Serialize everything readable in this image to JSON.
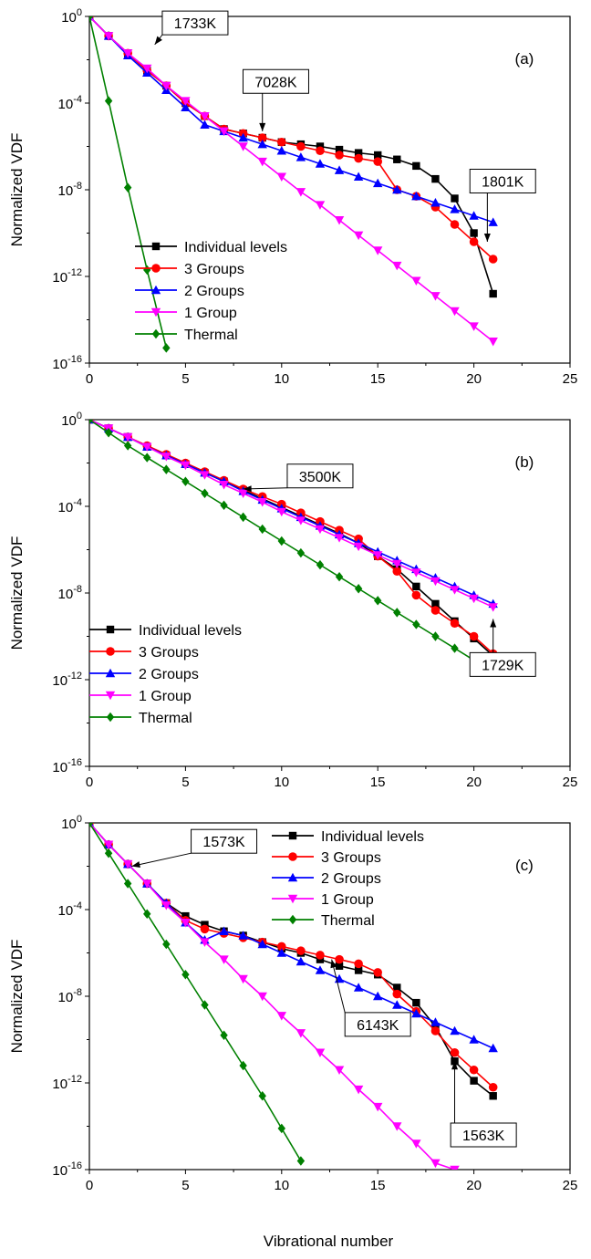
{
  "figure": {
    "xlabel": "Vibrational number"
  },
  "chart_data": [
    {
      "type": "line",
      "panel_label": "(a)",
      "ylabel": "Normalized VDF",
      "xlim": [
        0,
        25
      ],
      "ylim_exp": [
        -16,
        0
      ],
      "y_scale": "log",
      "x_ticks": [
        0,
        5,
        10,
        15,
        20,
        25
      ],
      "y_ticks_exp": [
        0,
        -4,
        -8,
        -12,
        -16
      ],
      "legend_position": "bottom-left",
      "series": [
        {
          "name": "Individual levels",
          "color": "#000000",
          "marker": "square",
          "x": [
            0,
            1,
            2,
            3,
            4,
            5,
            6,
            7,
            8,
            9,
            10,
            11,
            12,
            13,
            14,
            15,
            16,
            17,
            18,
            19,
            20,
            21
          ],
          "log10_y": [
            0,
            -0.9,
            -1.7,
            -2.5,
            -3.2,
            -4.0,
            -4.6,
            -5.2,
            -5.4,
            -5.6,
            -5.8,
            -5.9,
            -6.0,
            -6.15,
            -6.3,
            -6.4,
            -6.6,
            -6.9,
            -7.5,
            -8.4,
            -10.0,
            -12.8
          ]
        },
        {
          "name": "3 Groups",
          "color": "#ff0000",
          "marker": "circle",
          "x": [
            0,
            1,
            2,
            3,
            4,
            5,
            6,
            7,
            8,
            9,
            10,
            11,
            12,
            13,
            14,
            15,
            16,
            17,
            18,
            19,
            20,
            21
          ],
          "log10_y": [
            0,
            -0.9,
            -1.7,
            -2.5,
            -3.2,
            -4.0,
            -4.6,
            -5.2,
            -5.4,
            -5.6,
            -5.8,
            -6.0,
            -6.2,
            -6.4,
            -6.55,
            -6.7,
            -8.0,
            -8.3,
            -8.8,
            -9.6,
            -10.4,
            -11.2
          ]
        },
        {
          "name": "2 Groups",
          "color": "#0000ff",
          "marker": "triangle-up",
          "x": [
            0,
            1,
            2,
            3,
            4,
            5,
            6,
            7,
            8,
            9,
            10,
            11,
            12,
            13,
            14,
            15,
            16,
            17,
            18,
            19,
            20,
            21
          ],
          "log10_y": [
            0,
            -0.9,
            -1.8,
            -2.6,
            -3.4,
            -4.2,
            -5.0,
            -5.3,
            -5.6,
            -5.9,
            -6.2,
            -6.5,
            -6.8,
            -7.1,
            -7.4,
            -7.7,
            -8.0,
            -8.3,
            -8.6,
            -8.9,
            -9.2,
            -9.5
          ]
        },
        {
          "name": "1 Group",
          "color": "#ff00ff",
          "marker": "triangle-down",
          "x": [
            0,
            1,
            2,
            3,
            4,
            5,
            6,
            7,
            8,
            9,
            10,
            11,
            12,
            13,
            14,
            15,
            16,
            17,
            18,
            19,
            20,
            21
          ],
          "log10_y": [
            0,
            -0.9,
            -1.7,
            -2.4,
            -3.2,
            -3.9,
            -4.6,
            -5.3,
            -6.0,
            -6.7,
            -7.4,
            -8.1,
            -8.7,
            -9.4,
            -10.1,
            -10.8,
            -11.5,
            -12.2,
            -12.9,
            -13.6,
            -14.3,
            -15.0
          ]
        },
        {
          "name": "Thermal",
          "color": "#008000",
          "marker": "diamond",
          "x": [
            0,
            1,
            2,
            3,
            4
          ],
          "log10_y": [
            0,
            -3.9,
            -7.9,
            -11.7,
            -15.3
          ]
        }
      ],
      "annotations": [
        {
          "text": "1733K",
          "box_x": 5.5,
          "box_y_exp": -0.3,
          "arrow_x": 3.4,
          "arrow_y_exp": -1.3
        },
        {
          "text": "7028K",
          "box_x": 9.7,
          "box_y_exp": -3.0,
          "arrow_x": 9.0,
          "arrow_y_exp": -5.3
        },
        {
          "text": "1801K",
          "box_x": 21.5,
          "box_y_exp": -7.6,
          "arrow_x": 20.7,
          "arrow_y_exp": -10.4
        }
      ]
    },
    {
      "type": "line",
      "panel_label": "(b)",
      "ylabel": "Normalized VDF",
      "xlim": [
        0,
        25
      ],
      "ylim_exp": [
        -16,
        0
      ],
      "y_scale": "log",
      "x_ticks": [
        0,
        5,
        10,
        15,
        20,
        25
      ],
      "y_ticks_exp": [
        0,
        -4,
        -8,
        -12,
        -16
      ],
      "legend_position": "middle-left",
      "series": [
        {
          "name": "Individual levels",
          "color": "#000000",
          "marker": "square",
          "x": [
            0,
            1,
            2,
            3,
            4,
            5,
            6,
            7,
            8,
            9,
            10,
            11,
            12,
            13,
            14,
            15,
            16,
            17,
            18,
            19,
            20,
            21
          ],
          "log10_y": [
            0,
            -0.4,
            -0.8,
            -1.25,
            -1.65,
            -2.05,
            -2.45,
            -2.85,
            -3.25,
            -3.65,
            -4.05,
            -4.45,
            -4.85,
            -5.25,
            -5.7,
            -6.3,
            -6.9,
            -7.7,
            -8.5,
            -9.3,
            -10.1,
            -10.9
          ]
        },
        {
          "name": "3 Groups",
          "color": "#ff0000",
          "marker": "circle",
          "x": [
            0,
            1,
            2,
            3,
            4,
            5,
            6,
            7,
            8,
            9,
            10,
            11,
            12,
            13,
            14,
            15,
            16,
            17,
            18,
            19,
            20,
            21
          ],
          "log10_y": [
            0,
            -0.4,
            -0.8,
            -1.2,
            -1.6,
            -2.0,
            -2.4,
            -2.8,
            -3.2,
            -3.55,
            -3.9,
            -4.3,
            -4.7,
            -5.1,
            -5.5,
            -6.3,
            -7.0,
            -8.1,
            -8.8,
            -9.4,
            -10.0,
            -10.8
          ]
        },
        {
          "name": "2 Groups",
          "color": "#0000ff",
          "marker": "triangle-up",
          "x": [
            0,
            1,
            2,
            3,
            4,
            5,
            6,
            7,
            8,
            9,
            10,
            11,
            12,
            13,
            14,
            15,
            16,
            17,
            18,
            19,
            20,
            21
          ],
          "log10_y": [
            0,
            -0.4,
            -0.8,
            -1.25,
            -1.65,
            -2.05,
            -2.45,
            -2.85,
            -3.3,
            -3.7,
            -4.1,
            -4.5,
            -4.9,
            -5.3,
            -5.7,
            -6.1,
            -6.5,
            -6.9,
            -7.3,
            -7.7,
            -8.1,
            -8.5
          ]
        },
        {
          "name": "1 Group",
          "color": "#ff00ff",
          "marker": "triangle-down",
          "x": [
            0,
            1,
            2,
            3,
            4,
            5,
            6,
            7,
            8,
            9,
            10,
            11,
            12,
            13,
            14,
            15,
            16,
            17,
            18,
            19,
            20,
            21
          ],
          "log10_y": [
            0,
            -0.4,
            -0.8,
            -1.25,
            -1.7,
            -2.1,
            -2.55,
            -3.0,
            -3.4,
            -3.8,
            -4.25,
            -4.65,
            -5.05,
            -5.45,
            -5.85,
            -6.25,
            -6.65,
            -7.05,
            -7.45,
            -7.85,
            -8.25,
            -8.65
          ]
        },
        {
          "name": "Thermal",
          "color": "#008000",
          "marker": "diamond",
          "x": [
            0,
            1,
            2,
            3,
            4,
            5,
            6,
            7,
            8,
            9,
            10,
            11,
            12,
            13,
            14,
            15,
            16,
            17,
            18,
            19,
            20,
            21
          ],
          "log10_y": [
            0,
            -0.6,
            -1.2,
            -1.75,
            -2.3,
            -2.85,
            -3.4,
            -3.95,
            -4.5,
            -5.05,
            -5.6,
            -6.15,
            -6.7,
            -7.25,
            -7.8,
            -8.35,
            -8.9,
            -9.45,
            -10.0,
            -10.55,
            -11.1,
            -11.6
          ]
        }
      ],
      "annotations": [
        {
          "text": "3500K",
          "box_x": 12.0,
          "box_y_exp": -2.6,
          "arrow_x": 8.0,
          "arrow_y_exp": -3.2
        },
        {
          "text": "1729K",
          "box_x": 21.5,
          "box_y_exp": -11.3,
          "arrow_x": 21.0,
          "arrow_y_exp": -9.2
        }
      ]
    },
    {
      "type": "line",
      "panel_label": "(c)",
      "ylabel": "Normalized VDF",
      "xlim": [
        0,
        25
      ],
      "ylim_exp": [
        -16,
        0
      ],
      "y_scale": "log",
      "x_ticks": [
        0,
        5,
        10,
        15,
        20,
        25
      ],
      "y_ticks_exp": [
        0,
        -4,
        -8,
        -12,
        -16
      ],
      "legend_position": "top-right",
      "series": [
        {
          "name": "Individual levels",
          "color": "#000000",
          "marker": "square",
          "x": [
            0,
            1,
            2,
            3,
            4,
            5,
            6,
            7,
            8,
            9,
            10,
            11,
            12,
            13,
            14,
            15,
            16,
            17,
            18,
            19,
            20,
            21
          ],
          "log10_y": [
            0,
            -1.0,
            -1.9,
            -2.8,
            -3.7,
            -4.3,
            -4.7,
            -5.0,
            -5.2,
            -5.5,
            -5.8,
            -6.0,
            -6.3,
            -6.6,
            -6.8,
            -7.0,
            -7.6,
            -8.3,
            -9.4,
            -11.0,
            -11.9,
            -12.6
          ]
        },
        {
          "name": "3 Groups",
          "color": "#ff0000",
          "marker": "circle",
          "x": [
            0,
            1,
            2,
            3,
            4,
            5,
            6,
            7,
            8,
            9,
            10,
            11,
            12,
            13,
            14,
            15,
            16,
            17,
            18,
            19,
            20,
            21
          ],
          "log10_y": [
            0,
            -1.0,
            -1.9,
            -2.8,
            -3.7,
            -4.5,
            -4.9,
            -5.1,
            -5.3,
            -5.5,
            -5.7,
            -5.9,
            -6.1,
            -6.3,
            -6.5,
            -6.9,
            -7.9,
            -8.7,
            -9.6,
            -10.6,
            -11.4,
            -12.2
          ]
        },
        {
          "name": "2 Groups",
          "color": "#0000ff",
          "marker": "triangle-up",
          "x": [
            0,
            1,
            2,
            3,
            4,
            5,
            6,
            7,
            8,
            9,
            10,
            11,
            12,
            13,
            14,
            15,
            16,
            17,
            18,
            19,
            20,
            21
          ],
          "log10_y": [
            0,
            -1.0,
            -1.9,
            -2.8,
            -3.7,
            -4.6,
            -5.4,
            -5.0,
            -5.2,
            -5.6,
            -6.0,
            -6.4,
            -6.8,
            -7.2,
            -7.6,
            -8.0,
            -8.4,
            -8.8,
            -9.2,
            -9.6,
            -10.0,
            -10.4
          ]
        },
        {
          "name": "1 Group",
          "color": "#ff00ff",
          "marker": "triangle-down",
          "x": [
            0,
            1,
            2,
            3,
            4,
            5,
            6,
            7,
            8,
            9,
            10,
            11,
            12,
            13,
            14,
            15,
            16,
            17,
            18,
            19
          ],
          "log10_y": [
            0,
            -1.0,
            -1.9,
            -2.8,
            -3.8,
            -4.6,
            -5.5,
            -6.3,
            -7.2,
            -8.0,
            -8.9,
            -9.7,
            -10.6,
            -11.4,
            -12.3,
            -13.1,
            -14.0,
            -14.8,
            -15.7,
            -16.0
          ]
        },
        {
          "name": "Thermal",
          "color": "#008000",
          "marker": "diamond",
          "x": [
            0,
            1,
            2,
            3,
            4,
            5,
            6,
            7,
            8,
            9,
            10,
            11
          ],
          "log10_y": [
            0,
            -1.4,
            -2.8,
            -4.2,
            -5.6,
            -7.0,
            -8.4,
            -9.8,
            -11.2,
            -12.6,
            -14.1,
            -15.6
          ]
        }
      ],
      "annotations": [
        {
          "text": "1573K",
          "box_x": 7.0,
          "box_y_exp": -0.85,
          "arrow_x": 2.2,
          "arrow_y_exp": -2.0
        },
        {
          "text": "6143K",
          "box_x": 15.0,
          "box_y_exp": -9.3,
          "arrow_x": 12.6,
          "arrow_y_exp": -6.3
        },
        {
          "text": "1563K",
          "box_x": 20.5,
          "box_y_exp": -14.4,
          "arrow_x": 19.0,
          "arrow_y_exp": -11.0
        }
      ]
    }
  ]
}
